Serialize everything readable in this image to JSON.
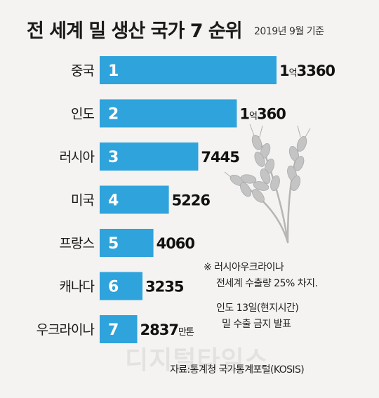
{
  "title": "전 세계 밀 생산 국가 7 순위",
  "subtitle": "2019년 9월 기준",
  "watermark": "디지털타임스",
  "colors": {
    "bar": "#2fa3db",
    "rank_text": "#ffffff",
    "value_text": "#111111"
  },
  "chart_data": {
    "type": "bar",
    "orientation": "horizontal",
    "unit": "만톤",
    "categories": [
      "중국",
      "인도",
      "러시아",
      "미국",
      "프랑스",
      "캐나다",
      "우크라이나"
    ],
    "ranks": [
      "1",
      "2",
      "3",
      "4",
      "5",
      "6",
      "7"
    ],
    "values": [
      13360,
      10360,
      7445,
      5226,
      4060,
      3235,
      2837
    ],
    "value_labels": [
      {
        "main": "1",
        "small": "억",
        "rest": "3360"
      },
      {
        "main": "1",
        "small": "억",
        "rest": "360"
      },
      {
        "main": "7445",
        "small": "",
        "rest": ""
      },
      {
        "main": "5226",
        "small": "",
        "rest": ""
      },
      {
        "main": "4060",
        "small": "",
        "rest": ""
      },
      {
        "main": "3235",
        "small": "",
        "rest": ""
      },
      {
        "main": "2837",
        "small": "만톤",
        "rest": ""
      }
    ]
  },
  "note": {
    "line1": "※ 러시아우크라이나",
    "line2": "전세계 수출량 25% 차지.",
    "line3": "인도 13일(현지시간)",
    "line4": "밀 수출 금지 발표"
  },
  "source": "자료:통계청 국가통계포털(KOSIS)"
}
